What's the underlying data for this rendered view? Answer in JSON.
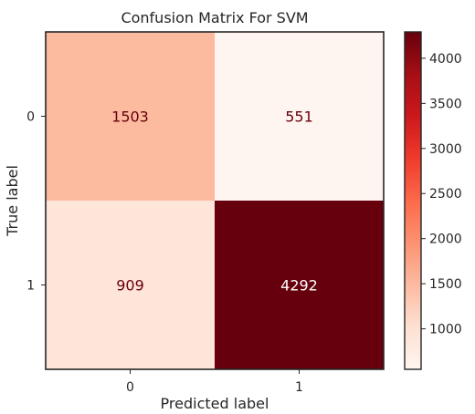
{
  "chart_data": {
    "type": "heatmap",
    "title": "Confusion Matrix For SVM",
    "xlabel": "Predicted label",
    "ylabel": "True label",
    "x_ticks": [
      "0",
      "1"
    ],
    "y_ticks": [
      "0",
      "1"
    ],
    "matrix": [
      [
        1503,
        551
      ],
      [
        909,
        4292
      ]
    ],
    "colormap": "Reds",
    "colorbar": {
      "range": [
        551,
        4292
      ],
      "ticks": [
        1000,
        1500,
        2000,
        2500,
        3000,
        3500,
        4000
      ]
    },
    "grid": false
  },
  "colors": {
    "text_dark_cell": "#67000d",
    "text_light_cell": "#ffffff",
    "frame": "#262626"
  }
}
